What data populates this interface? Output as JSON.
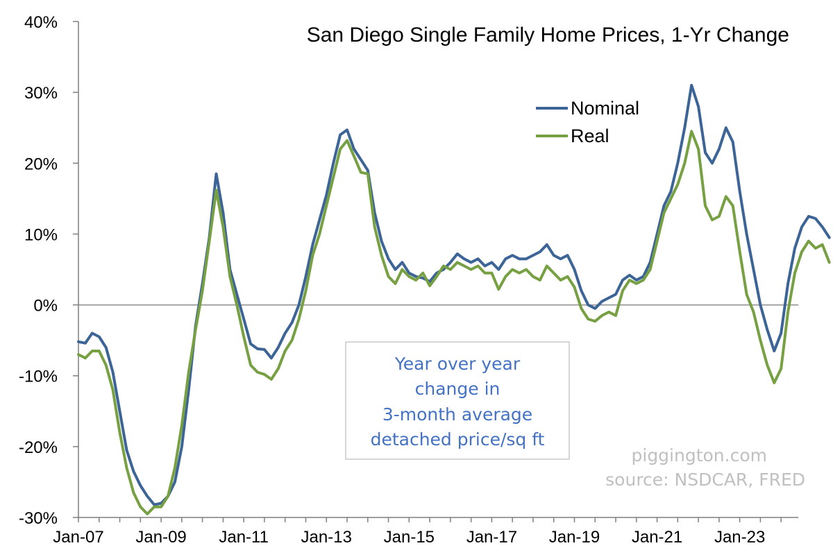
{
  "chart_data": {
    "type": "line",
    "title": "San Diego Single Family Home Prices, 1-Yr Change",
    "x_tick_labels": [
      "Jan-07",
      "Jan-09",
      "Jan-11",
      "Jan-13",
      "Jan-15",
      "Jan-17",
      "Jan-19",
      "Jan-21",
      "Jan-23"
    ],
    "y_tick_labels": [
      "40%",
      "30%",
      "20%",
      "10%",
      "0%",
      "-10%",
      "-20%",
      "-30%"
    ],
    "ylim": [
      -30,
      40
    ],
    "xlim": [
      "2007-01",
      "2024-06"
    ],
    "grid": false,
    "zero_line": true,
    "legend_position": "top-right",
    "annotation": [
      "Year over year",
      "change in",
      "3-month average",
      "detached price/sq ft"
    ],
    "credits": [
      "piggington.com",
      "source: NSDCAR, FRED"
    ],
    "series": [
      {
        "name": "Nominal",
        "color": "#3c6496",
        "points": [
          [
            "2007-01",
            -5.2
          ],
          [
            "2007-03",
            -5.4
          ],
          [
            "2007-05",
            -4.0
          ],
          [
            "2007-07",
            -4.5
          ],
          [
            "2007-09",
            -6.0
          ],
          [
            "2007-11",
            -9.5
          ],
          [
            "2008-01",
            -15.0
          ],
          [
            "2008-03",
            -20.5
          ],
          [
            "2008-05",
            -23.5
          ],
          [
            "2008-07",
            -25.5
          ],
          [
            "2008-09",
            -27.0
          ],
          [
            "2008-11",
            -28.2
          ],
          [
            "2009-01",
            -28.0
          ],
          [
            "2009-03",
            -27.0
          ],
          [
            "2009-05",
            -25.0
          ],
          [
            "2009-07",
            -20.0
          ],
          [
            "2009-09",
            -12.0
          ],
          [
            "2009-11",
            -3.0
          ],
          [
            "2010-01",
            3.0
          ],
          [
            "2010-03",
            9.5
          ],
          [
            "2010-05",
            18.5
          ],
          [
            "2010-07",
            13.0
          ],
          [
            "2010-09",
            5.0
          ],
          [
            "2010-11",
            1.5
          ],
          [
            "2011-01",
            -2.0
          ],
          [
            "2011-03",
            -5.5
          ],
          [
            "2011-05",
            -6.2
          ],
          [
            "2011-07",
            -6.3
          ],
          [
            "2011-09",
            -7.5
          ],
          [
            "2011-11",
            -6.0
          ],
          [
            "2012-01",
            -4.0
          ],
          [
            "2012-03",
            -2.5
          ],
          [
            "2012-05",
            0.0
          ],
          [
            "2012-07",
            4.0
          ],
          [
            "2012-09",
            8.5
          ],
          [
            "2012-11",
            12.0
          ],
          [
            "2013-01",
            15.5
          ],
          [
            "2013-03",
            20.0
          ],
          [
            "2013-05",
            24.0
          ],
          [
            "2013-07",
            24.7
          ],
          [
            "2013-09",
            22.0
          ],
          [
            "2013-11",
            20.5
          ],
          [
            "2014-01",
            19.0
          ],
          [
            "2014-03",
            13.0
          ],
          [
            "2014-05",
            9.0
          ],
          [
            "2014-07",
            6.5
          ],
          [
            "2014-09",
            5.0
          ],
          [
            "2014-11",
            6.0
          ],
          [
            "2015-01",
            4.5
          ],
          [
            "2015-03",
            4.0
          ],
          [
            "2015-05",
            3.8
          ],
          [
            "2015-07",
            3.3
          ],
          [
            "2015-09",
            4.5
          ],
          [
            "2015-11",
            5.0
          ],
          [
            "2016-01",
            6.0
          ],
          [
            "2016-03",
            7.2
          ],
          [
            "2016-05",
            6.5
          ],
          [
            "2016-07",
            6.0
          ],
          [
            "2016-09",
            6.5
          ],
          [
            "2016-11",
            5.5
          ],
          [
            "2017-01",
            6.0
          ],
          [
            "2017-03",
            5.0
          ],
          [
            "2017-05",
            6.5
          ],
          [
            "2017-07",
            7.0
          ],
          [
            "2017-09",
            6.5
          ],
          [
            "2017-11",
            6.5
          ],
          [
            "2018-01",
            7.0
          ],
          [
            "2018-03",
            7.5
          ],
          [
            "2018-05",
            8.5
          ],
          [
            "2018-07",
            7.0
          ],
          [
            "2018-09",
            6.5
          ],
          [
            "2018-11",
            7.0
          ],
          [
            "2019-01",
            5.0
          ],
          [
            "2019-03",
            2.0
          ],
          [
            "2019-05",
            0.0
          ],
          [
            "2019-07",
            -0.5
          ],
          [
            "2019-09",
            0.5
          ],
          [
            "2019-11",
            1.0
          ],
          [
            "2020-01",
            1.5
          ],
          [
            "2020-03",
            3.5
          ],
          [
            "2020-05",
            4.2
          ],
          [
            "2020-07",
            3.5
          ],
          [
            "2020-09",
            4.0
          ],
          [
            "2020-11",
            6.0
          ],
          [
            "2021-01",
            10.0
          ],
          [
            "2021-03",
            14.0
          ],
          [
            "2021-05",
            16.0
          ],
          [
            "2021-07",
            20.0
          ],
          [
            "2021-09",
            25.0
          ],
          [
            "2021-11",
            31.0
          ],
          [
            "2022-01",
            28.0
          ],
          [
            "2022-03",
            21.5
          ],
          [
            "2022-05",
            20.0
          ],
          [
            "2022-07",
            22.0
          ],
          [
            "2022-09",
            25.0
          ],
          [
            "2022-11",
            23.0
          ],
          [
            "2023-01",
            16.0
          ],
          [
            "2023-03",
            10.0
          ],
          [
            "2023-05",
            5.0
          ],
          [
            "2023-07",
            0.0
          ],
          [
            "2023-09",
            -3.5
          ],
          [
            "2023-11",
            -6.5
          ],
          [
            "2024-01",
            -4.0
          ],
          [
            "2024-03",
            3.0
          ],
          [
            "2024-05",
            8.0
          ],
          [
            "2024-07",
            11.0
          ],
          [
            "2024-09",
            12.5
          ],
          [
            "2024-11",
            12.2
          ],
          [
            "2025-01",
            11.0
          ],
          [
            "2025-03",
            9.5
          ]
        ]
      },
      {
        "name": "Real",
        "color": "#77a043",
        "points": [
          [
            "2007-01",
            -7.0
          ],
          [
            "2007-03",
            -7.5
          ],
          [
            "2007-05",
            -6.5
          ],
          [
            "2007-07",
            -6.5
          ],
          [
            "2007-09",
            -8.5
          ],
          [
            "2007-11",
            -12.0
          ],
          [
            "2008-01",
            -18.0
          ],
          [
            "2008-03",
            -23.0
          ],
          [
            "2008-05",
            -26.5
          ],
          [
            "2008-07",
            -28.5
          ],
          [
            "2008-09",
            -29.5
          ],
          [
            "2008-11",
            -28.5
          ],
          [
            "2009-01",
            -28.5
          ],
          [
            "2009-03",
            -27.0
          ],
          [
            "2009-05",
            -23.0
          ],
          [
            "2009-07",
            -17.0
          ],
          [
            "2009-09",
            -9.5
          ],
          [
            "2009-11",
            -3.5
          ],
          [
            "2010-01",
            2.0
          ],
          [
            "2010-03",
            9.0
          ],
          [
            "2010-05",
            16.2
          ],
          [
            "2010-07",
            11.0
          ],
          [
            "2010-09",
            4.0
          ],
          [
            "2010-11",
            0.0
          ],
          [
            "2011-01",
            -4.5
          ],
          [
            "2011-03",
            -8.5
          ],
          [
            "2011-05",
            -9.5
          ],
          [
            "2011-07",
            -9.8
          ],
          [
            "2011-09",
            -10.5
          ],
          [
            "2011-11",
            -9.0
          ],
          [
            "2012-01",
            -6.5
          ],
          [
            "2012-03",
            -5.0
          ],
          [
            "2012-05",
            -2.0
          ],
          [
            "2012-07",
            2.0
          ],
          [
            "2012-09",
            7.0
          ],
          [
            "2012-11",
            10.0
          ],
          [
            "2013-01",
            14.0
          ],
          [
            "2013-03",
            18.0
          ],
          [
            "2013-05",
            22.0
          ],
          [
            "2013-07",
            23.2
          ],
          [
            "2013-09",
            21.0
          ],
          [
            "2013-11",
            18.7
          ],
          [
            "2014-01",
            18.5
          ],
          [
            "2014-03",
            11.0
          ],
          [
            "2014-05",
            7.0
          ],
          [
            "2014-07",
            4.0
          ],
          [
            "2014-09",
            3.0
          ],
          [
            "2014-11",
            5.0
          ],
          [
            "2015-01",
            4.0
          ],
          [
            "2015-03",
            3.5
          ],
          [
            "2015-05",
            4.5
          ],
          [
            "2015-07",
            2.7
          ],
          [
            "2015-09",
            4.0
          ],
          [
            "2015-11",
            5.5
          ],
          [
            "2016-01",
            5.0
          ],
          [
            "2016-03",
            6.0
          ],
          [
            "2016-05",
            5.5
          ],
          [
            "2016-07",
            5.0
          ],
          [
            "2016-09",
            5.5
          ],
          [
            "2016-11",
            4.5
          ],
          [
            "2017-01",
            4.5
          ],
          [
            "2017-03",
            2.2
          ],
          [
            "2017-05",
            4.0
          ],
          [
            "2017-07",
            5.0
          ],
          [
            "2017-09",
            4.5
          ],
          [
            "2017-11",
            5.0
          ],
          [
            "2018-01",
            4.0
          ],
          [
            "2018-03",
            3.5
          ],
          [
            "2018-05",
            5.5
          ],
          [
            "2018-07",
            4.5
          ],
          [
            "2018-09",
            3.5
          ],
          [
            "2018-11",
            4.0
          ],
          [
            "2019-01",
            2.5
          ],
          [
            "2019-03",
            -0.5
          ],
          [
            "2019-05",
            -2.0
          ],
          [
            "2019-07",
            -2.3
          ],
          [
            "2019-09",
            -1.5
          ],
          [
            "2019-11",
            -1.0
          ],
          [
            "2020-01",
            -1.5
          ],
          [
            "2020-03",
            2.0
          ],
          [
            "2020-05",
            3.5
          ],
          [
            "2020-07",
            3.0
          ],
          [
            "2020-09",
            3.5
          ],
          [
            "2020-11",
            5.0
          ],
          [
            "2021-01",
            9.0
          ],
          [
            "2021-03",
            13.0
          ],
          [
            "2021-05",
            15.0
          ],
          [
            "2021-07",
            17.0
          ],
          [
            "2021-09",
            20.0
          ],
          [
            "2021-11",
            24.5
          ],
          [
            "2022-01",
            22.0
          ],
          [
            "2022-03",
            14.0
          ],
          [
            "2022-05",
            12.0
          ],
          [
            "2022-07",
            12.5
          ],
          [
            "2022-09",
            15.3
          ],
          [
            "2022-11",
            14.0
          ],
          [
            "2023-01",
            7.5
          ],
          [
            "2023-03",
            1.5
          ],
          [
            "2023-05",
            -1.0
          ],
          [
            "2023-07",
            -5.0
          ],
          [
            "2023-09",
            -8.5
          ],
          [
            "2023-11",
            -11.0
          ],
          [
            "2024-01",
            -9.0
          ],
          [
            "2024-03",
            -1.0
          ],
          [
            "2024-05",
            4.5
          ],
          [
            "2024-07",
            7.5
          ],
          [
            "2024-09",
            9.0
          ],
          [
            "2024-11",
            8.0
          ],
          [
            "2025-01",
            8.5
          ],
          [
            "2025-03",
            6.0
          ]
        ]
      }
    ]
  }
}
